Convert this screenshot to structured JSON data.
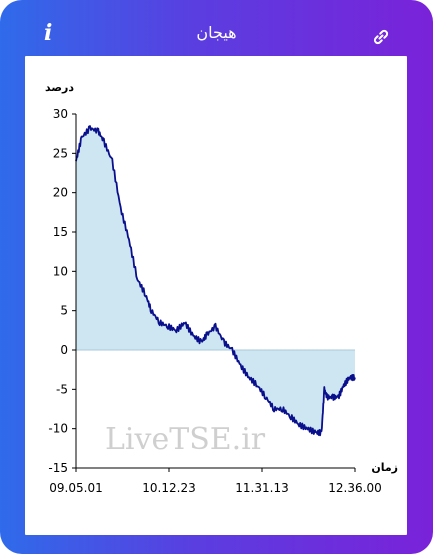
{
  "header": {
    "title": "هیجان",
    "info_icon": "info-icon",
    "link_icon": "link-icon",
    "gradient": [
      "#2f6bea",
      "#7a22d9"
    ]
  },
  "watermark": "LiveTSE.ir",
  "chart_data": {
    "type": "area",
    "title": "",
    "ylabel": "درصد",
    "xlabel": "زمان",
    "ylim": [
      -15,
      30
    ],
    "yticks": [
      30,
      25,
      20,
      15,
      10,
      5,
      0,
      -5,
      -10,
      -15
    ],
    "xticks": [
      "09.05.01",
      "10.12.23",
      "11.31.13",
      "12.36.00"
    ],
    "x_fractions": [
      0,
      0.02,
      0.05,
      0.08,
      0.1,
      0.13,
      0.16,
      0.19,
      0.22,
      0.25,
      0.27,
      0.3,
      0.33,
      0.36,
      0.39,
      0.42,
      0.45,
      0.47,
      0.5,
      0.53,
      0.56,
      0.59,
      0.62,
      0.65,
      0.68,
      0.71,
      0.74,
      0.77,
      0.8,
      0.83,
      0.86,
      0.88,
      0.89,
      0.9,
      0.92,
      0.94,
      0.96,
      0.98,
      1.0
    ],
    "values": [
      24,
      27,
      28.2,
      27.8,
      26.5,
      24,
      18,
      14,
      9,
      7,
      5,
      3.5,
      3,
      2.5,
      3.5,
      1.8,
      1,
      2,
      3,
      1,
      0,
      -2,
      -3.5,
      -4.5,
      -6,
      -7.5,
      -7.5,
      -8.5,
      -9.5,
      -10,
      -10.5,
      -10.5,
      -5,
      -6,
      -6,
      -6,
      -4.5,
      -3.5,
      -3.5
    ],
    "series": [
      {
        "fill": "#cde6f1",
        "stroke": "#0a0f8c"
      }
    ],
    "grid": false,
    "legend": "none"
  }
}
